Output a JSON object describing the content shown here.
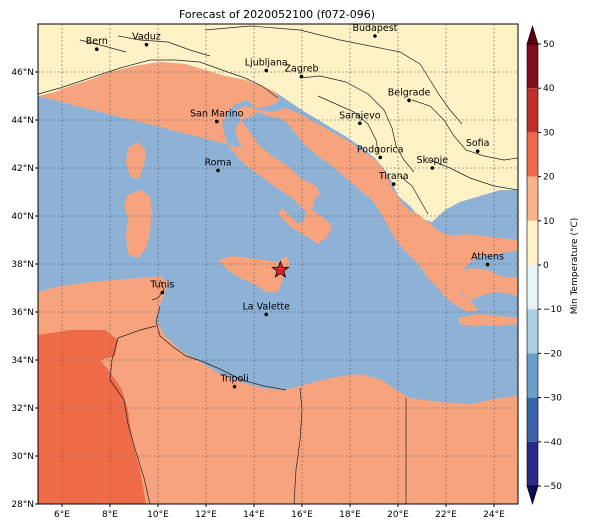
{
  "title": "Forecast of 2020052100 (f072-096)",
  "colorbar": {
    "label": "Min Temperature (°C)",
    "ticks": [
      50,
      40,
      30,
      20,
      10,
      0,
      -10,
      -20,
      -30,
      -40,
      -50
    ],
    "bands": [
      {
        "from": 40,
        "to": 50,
        "color": "#7f0f1f"
      },
      {
        "from": 30,
        "to": 40,
        "color": "#c0302a"
      },
      {
        "from": 20,
        "to": 30,
        "color": "#ef6a4c"
      },
      {
        "from": 10,
        "to": 20,
        "color": "#fbb28c"
      },
      {
        "from": 0,
        "to": 10,
        "color": "#fdf2c6"
      },
      {
        "from": -10,
        "to": 0,
        "color": "#e6f4f6"
      },
      {
        "from": -20,
        "to": -10,
        "color": "#a9d0e4"
      },
      {
        "from": -30,
        "to": -20,
        "color": "#6b9fcb"
      },
      {
        "from": -40,
        "to": -30,
        "color": "#3a63a8"
      },
      {
        "from": -50,
        "to": -40,
        "color": "#2a2a8a"
      }
    ],
    "over_color": "#5a0010",
    "under_color": "#0d0d55"
  },
  "map": {
    "lon_ticks": [
      "6°E",
      "8°E",
      "10°E",
      "12°E",
      "14°E",
      "16°E",
      "18°E",
      "20°E",
      "22°E",
      "24°E"
    ],
    "lat_ticks": [
      "46°N",
      "44°N",
      "42°N",
      "40°N",
      "38°N",
      "36°N",
      "34°N",
      "32°N",
      "30°N",
      "28°N"
    ],
    "colors": {
      "sea": "#8eb2d6",
      "warm": "#f7a47e",
      "mild": "#fdf2c6",
      "hot": "#f06b48",
      "star": "#e8222a"
    },
    "cities": [
      {
        "name": "Bern",
        "lon": 7.45,
        "lat": 46.95
      },
      {
        "name": "Vaduz",
        "lon": 9.52,
        "lat": 47.14
      },
      {
        "name": "Budapest",
        "lon": 19.04,
        "lat": 47.5
      },
      {
        "name": "Ljubljana",
        "lon": 14.51,
        "lat": 46.06
      },
      {
        "name": "Zagreb",
        "lon": 15.98,
        "lat": 45.81
      },
      {
        "name": "Belgrade",
        "lon": 20.46,
        "lat": 44.82
      },
      {
        "name": "San Marino",
        "lon": 12.45,
        "lat": 43.94
      },
      {
        "name": "Sarajevo",
        "lon": 18.41,
        "lat": 43.86
      },
      {
        "name": "Sofia",
        "lon": 23.32,
        "lat": 42.7
      },
      {
        "name": "Roma",
        "lon": 12.5,
        "lat": 41.9
      },
      {
        "name": "Podgorica",
        "lon": 19.26,
        "lat": 42.44
      },
      {
        "name": "Skopje",
        "lon": 21.43,
        "lat": 42.0
      },
      {
        "name": "Tirana",
        "lon": 19.82,
        "lat": 41.33
      },
      {
        "name": "Athens",
        "lon": 23.73,
        "lat": 37.98
      },
      {
        "name": "Tunis",
        "lon": 10.18,
        "lat": 36.81
      },
      {
        "name": "La Valette",
        "lon": 14.51,
        "lat": 35.9
      },
      {
        "name": "Tripoli",
        "lon": 13.19,
        "lat": 32.89
      }
    ],
    "marker": {
      "name": "forecast-point",
      "lon": 15.1,
      "lat": 37.75
    }
  }
}
